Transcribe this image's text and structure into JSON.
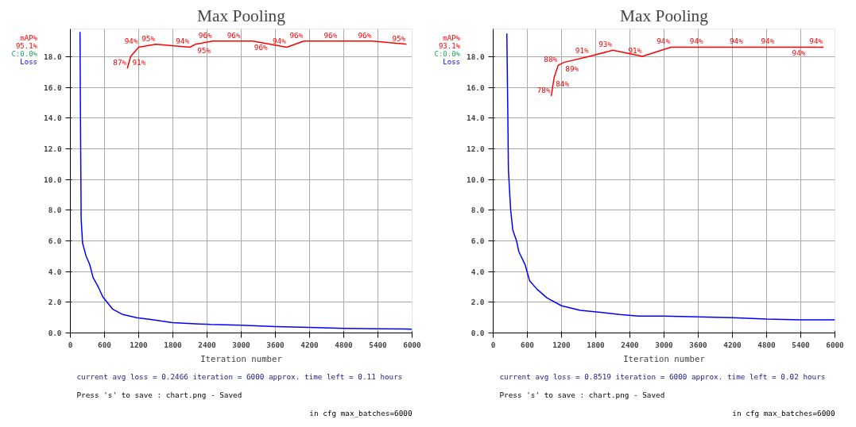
{
  "chart_data": [
    {
      "type": "line",
      "title": "Max Pooling",
      "xlabel": "Iteration number",
      "xlim": [
        0,
        6000
      ],
      "xticks": [
        0,
        600,
        1200,
        1800,
        2400,
        3000,
        3600,
        4200,
        4800,
        5400,
        6000
      ],
      "ylim": [
        0,
        19.8
      ],
      "yticks": [
        {
          "value": 0,
          "label": "0.0"
        },
        {
          "value": 2,
          "label": "2.0"
        },
        {
          "value": 4,
          "label": "4.0"
        },
        {
          "value": 6,
          "label": "6.0"
        },
        {
          "value": 8,
          "label": "8.0"
        },
        {
          "value": 10,
          "label": "10.0"
        },
        {
          "value": 12,
          "label": "12.0"
        },
        {
          "value": 14,
          "label": "14.0"
        },
        {
          "value": 16,
          "label": "16.0"
        },
        {
          "value": 18,
          "label": "18.0"
        }
      ],
      "y2lim": [
        0,
        100
      ],
      "grid": true,
      "series": [
        {
          "name": "mAP%",
          "color": "#ff0000",
          "axis": "y2",
          "x": [
            1000,
            1060,
            1200,
            1500,
            2100,
            2200,
            2500,
            3000,
            3200,
            3800,
            4100,
            4700,
            5300,
            5900
          ],
          "values": [
            87,
            91,
            94,
            95,
            94,
            95,
            96,
            96,
            96,
            94,
            96,
            96,
            96,
            95
          ],
          "value_labels": [
            "87%",
            "91%",
            "94%",
            "95%",
            "94%",
            "95%",
            "96%",
            "96%",
            "96%",
            "94%",
            "96%",
            "96%",
            "96%",
            "95%"
          ]
        },
        {
          "name": "Loss",
          "color": "#0000ff",
          "x": [
            170,
            176,
            190,
            215,
            277,
            340,
            400,
            490,
            570,
            740,
            910,
            1160,
            1410,
            1790,
            2460,
            3000,
            3600,
            4200,
            4800,
            5400,
            6000
          ],
          "values": [
            19.6,
            15.1,
            7.4,
            5.85,
            5.0,
            4.46,
            3.6,
            3.0,
            2.35,
            1.56,
            1.22,
            1.0,
            0.88,
            0.67,
            0.55,
            0.5,
            0.42,
            0.36,
            0.3,
            0.27,
            0.25
          ]
        }
      ],
      "annotations": [
        "95.1%",
        "C:0.0%",
        "current avg loss = 0.2466    iteration = 6000    approx. time left = 0.11 hours",
        "Press 's' to save : chart.png - Saved",
        "in cfg max_batches=6000"
      ]
    },
    {
      "type": "line",
      "title": "Max Pooling",
      "xlabel": "Iteration number",
      "xlim": [
        0,
        6000
      ],
      "xticks": [
        0,
        600,
        1200,
        1800,
        2400,
        3000,
        3600,
        4200,
        4800,
        5400,
        6000
      ],
      "ylim": [
        0,
        19.8
      ],
      "yticks": [
        {
          "value": 0,
          "label": "0.0"
        },
        {
          "value": 2,
          "label": "2.0"
        },
        {
          "value": 4,
          "label": "4.0"
        },
        {
          "value": 6,
          "label": "6.0"
        },
        {
          "value": 8,
          "label": "8.0"
        },
        {
          "value": 10,
          "label": "10.0"
        },
        {
          "value": 12,
          "label": "12.0"
        },
        {
          "value": 14,
          "label": "14.0"
        },
        {
          "value": 16,
          "label": "16.0"
        },
        {
          "value": 18,
          "label": "18.0"
        }
      ],
      "y2lim": [
        0,
        100
      ],
      "grid": true,
      "series": [
        {
          "name": "mAP%",
          "color": "#ff0000",
          "axis": "y2",
          "x": [
            1020,
            1070,
            1140,
            1240,
            1690,
            2100,
            2620,
            3120,
            3700,
            4400,
            4950,
            5220,
            5800
          ],
          "values": [
            78,
            84,
            88,
            89,
            91,
            93,
            91,
            94,
            94,
            94,
            94,
            94,
            94
          ],
          "value_labels": [
            "78%",
            "84%",
            "88%",
            "89%",
            "91%",
            "93%",
            "91%",
            "94%",
            "94%",
            "94%",
            "94%",
            "94%",
            "94%"
          ]
        },
        {
          "name": "Loss",
          "color": "#0000ff",
          "x": [
            240,
            255,
            268,
            307,
            345,
            410,
            450,
            560,
            640,
            770,
            945,
            1200,
            1530,
            1880,
            2220,
            2550,
            3000,
            3600,
            4200,
            4800,
            5400,
            6000
          ],
          "values": [
            19.5,
            15.0,
            10.6,
            8.0,
            6.7,
            6.0,
            5.3,
            4.45,
            3.4,
            2.85,
            2.28,
            1.77,
            1.47,
            1.34,
            1.2,
            1.1,
            1.1,
            1.05,
            1.0,
            0.9,
            0.85,
            0.85
          ]
        }
      ],
      "annotations": [
        "93.1%",
        "C:0.0%",
        "current avg loss = 0.8519    iteration = 6000    approx. time left = 0.02 hours",
        "Press 's' to save : chart.png - Saved",
        "in cfg max_batches=6000"
      ]
    }
  ]
}
